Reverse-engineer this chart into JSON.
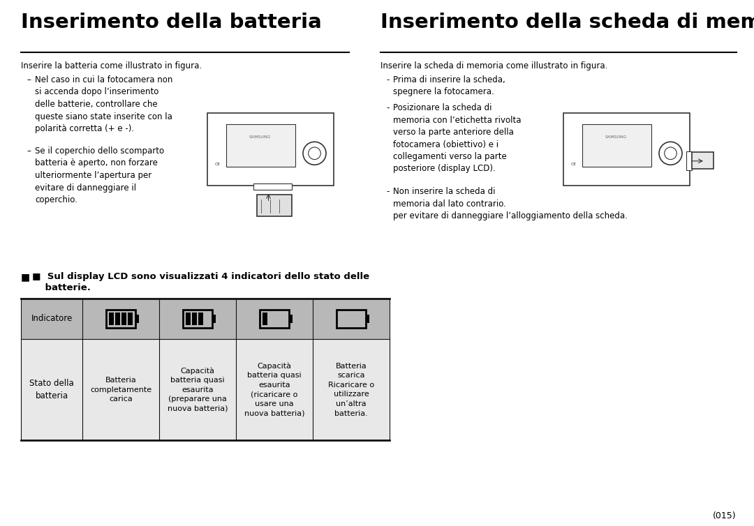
{
  "title_left": "Inserimento della batteria",
  "title_right": "Inserimento della scheda di memoria",
  "subtitle_left": "Inserire la batteria come illustrato in figura.",
  "subtitle_right": "Inserire la scheda di memoria come illustrato in figura.",
  "bullet_left": [
    "Nel caso in cui la fotocamera non\nsi accenda dopo l’inserimento\ndelle batterie, controllare che\nqueste siano state inserite con la\npolarità corretta (+ e -).",
    "Se il coperchio dello scomparto\nbatteria è aperto, non forzare\nulteriormente l’apertura per\nevitare di danneggiare il\ncoperchio."
  ],
  "bullet_right": [
    "Prima di inserire la scheda,\nspegnere la fotocamera.",
    "Posizionare la scheda di\nmemoria con l’etichetta rivolta\nverso la parte anteriore della\nfotocamera (obiettivo) e i\ncollegamenti verso la parte\nposteriore (display LCD).",
    "Non inserire la scheda di\nmemoria dal lato contrario.\nper evitare di danneggiare l’alloggiamento della scheda."
  ],
  "indicator_note_line1": "■  Sul display LCD sono visualizzati 4 indicatori dello stato delle",
  "indicator_note_line2": "    batterie.",
  "table_col1_label": "Stato della\nbatteria",
  "table_col_texts": [
    "Batteria\ncompletamente\ncarica",
    "Capacità\nbatteria quasi\nesaurita\n(preparare una\nnuova batteria)",
    "Capacità\nbatteria quasi\nesaurita\n(ricaricare o\nusare una\nnuova batteria)",
    "Batteria\nscarica\nRicaricare o\nutilizzare\nun’altra\nbatteria."
  ],
  "page_number": "(015)",
  "bg_color": "#ffffff",
  "text_color": "#000000",
  "title_color": "#000000",
  "table_header_bg": "#b8b8b8",
  "table_row_bg": "#e8e8e8",
  "battery_icons_bars": [
    4,
    3,
    1,
    0
  ]
}
